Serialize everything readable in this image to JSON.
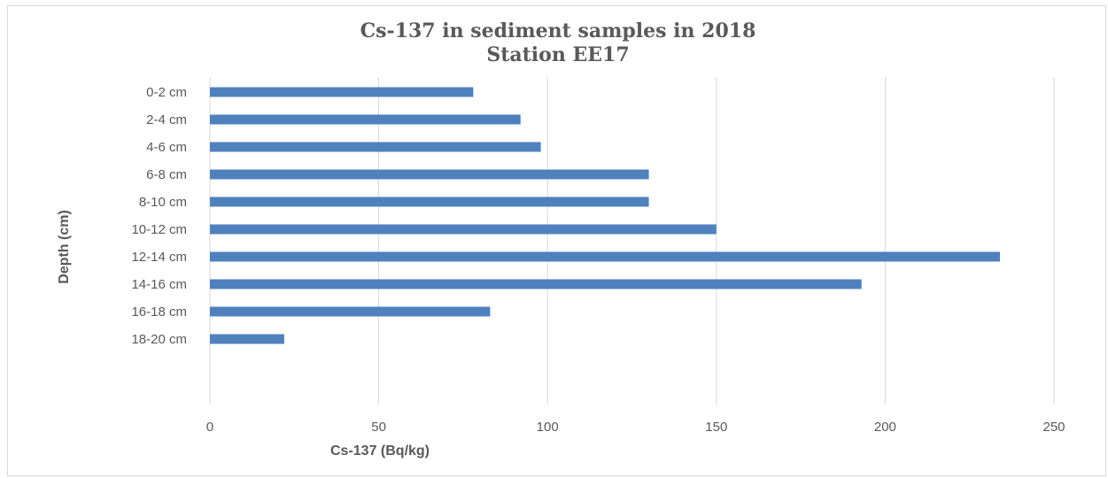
{
  "chart_data": {
    "type": "bar",
    "orientation": "horizontal",
    "title": "Cs-137 in sediment samples in 2018",
    "subtitle": "Station EE17",
    "xlabel": "Cs-137 (Bq/kg)",
    "ylabel": "Depth (cm)",
    "categories": [
      "0-2 cm",
      "2-4 cm",
      "4-6 cm",
      "6-8 cm",
      "8-10 cm",
      "10-12 cm",
      "12-14 cm",
      "14-16 cm",
      "16-18 cm",
      "18-20 cm"
    ],
    "values": [
      78,
      92,
      98,
      130,
      130,
      150,
      234,
      193,
      83,
      22
    ],
    "xlim": [
      0,
      250
    ],
    "xticks": [
      "0",
      "50",
      "100",
      "150",
      "200",
      "250"
    ],
    "grid": true,
    "bar_color": "#4f81bd",
    "grid_color": "#d9d9d9",
    "text_color": "#595959"
  }
}
